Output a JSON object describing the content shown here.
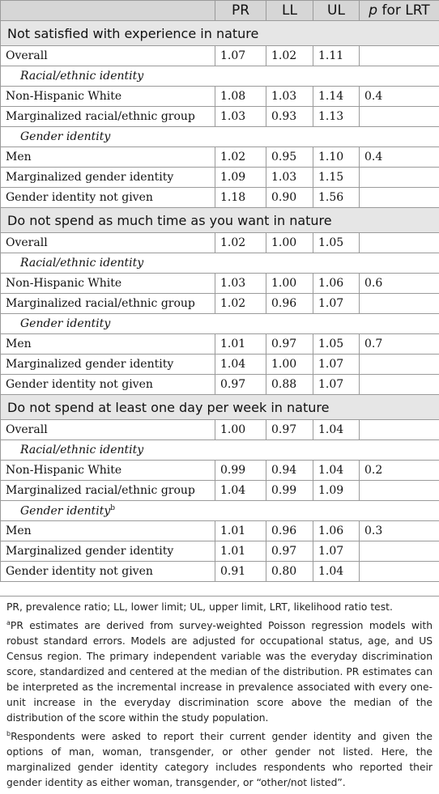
{
  "header": {
    "col_label": "",
    "pr": "PR",
    "ll": "LL",
    "ul": "UL",
    "p": "p",
    "p_suffix": " for LRT"
  },
  "sections": [
    {
      "title": "Not satisfied with experience in nature",
      "overall": {
        "label": "Overall",
        "pr": "1.07",
        "ll": "1.02",
        "ul": "1.11"
      },
      "race_label": "Racial/ethnic identity",
      "race": [
        {
          "label": "Non-Hispanic White",
          "pr": "1.08",
          "ll": "1.03",
          "ul": "1.14",
          "p": "0.4"
        },
        {
          "label": "Marginalized racial/ethnic group",
          "pr": "1.03",
          "ll": "0.93",
          "ul": "1.13",
          "p": ""
        }
      ],
      "gender_label": "Gender identity",
      "gender_sup": "",
      "gender": [
        {
          "label": "Men",
          "pr": "1.02",
          "ll": "0.95",
          "ul": "1.10",
          "p": "0.4"
        },
        {
          "label": "Marginalized gender identity",
          "pr": "1.09",
          "ll": "1.03",
          "ul": "1.15",
          "p": ""
        },
        {
          "label": "Gender identity not given",
          "pr": "1.18",
          "ll": "0.90",
          "ul": "1.56",
          "p": ""
        }
      ]
    },
    {
      "title": "Do not spend as much time as you want in nature",
      "overall": {
        "label": "Overall",
        "pr": "1.02",
        "ll": "1.00",
        "ul": "1.05"
      },
      "race_label": "Racial/ethnic identity",
      "race": [
        {
          "label": "Non-Hispanic White",
          "pr": "1.03",
          "ll": "1.00",
          "ul": "1.06",
          "p": "0.6"
        },
        {
          "label": "Marginalized racial/ethnic group",
          "pr": "1.02",
          "ll": "0.96",
          "ul": "1.07",
          "p": ""
        }
      ],
      "gender_label": "Gender identity",
      "gender_sup": "",
      "gender": [
        {
          "label": "Men",
          "pr": "1.01",
          "ll": "0.97",
          "ul": "1.05",
          "p": "0.7"
        },
        {
          "label": "Marginalized gender identity",
          "pr": "1.04",
          "ll": "1.00",
          "ul": "1.07",
          "p": ""
        },
        {
          "label": "Gender identity not given",
          "pr": "0.97",
          "ll": "0.88",
          "ul": "1.07",
          "p": ""
        }
      ]
    },
    {
      "title": "Do not spend at least one day per week in nature",
      "overall": {
        "label": "Overall",
        "pr": "1.00",
        "ll": "0.97",
        "ul": "1.04"
      },
      "race_label": "Racial/ethnic identity",
      "race": [
        {
          "label": "Non-Hispanic White",
          "pr": "0.99",
          "ll": "0.94",
          "ul": "1.04",
          "p": "0.2"
        },
        {
          "label": "Marginalized racial/ethnic group",
          "pr": "1.04",
          "ll": "0.99",
          "ul": "1.09",
          "p": ""
        }
      ],
      "gender_label": "Gender identity",
      "gender_sup": "b",
      "gender": [
        {
          "label": "Men",
          "pr": "1.01",
          "ll": "0.96",
          "ul": "1.06",
          "p": "0.3"
        },
        {
          "label": "Marginalized gender identity",
          "pr": "1.01",
          "ll": "0.97",
          "ul": "1.07",
          "p": ""
        },
        {
          "label": "Gender identity not given",
          "pr": "0.91",
          "ll": "0.80",
          "ul": "1.04",
          "p": ""
        }
      ]
    }
  ],
  "notes": {
    "abbrev": "PR, prevalence ratio; LL, lower limit; UL, upper limit, LRT, likelihood ratio test.",
    "a_mark": "a",
    "a_text": "PR estimates are derived from survey-weighted Poisson regression models with robust standard errors. Models are adjusted for occupational status, age, and US Census region. The primary independent variable was the everyday discrimination score, standardized and centered at the median of the distribution. PR estimates can be interpreted as the incremental increase in prevalence associated with every one-unit increase in the everyday discrimination score above the median of the distribution of the score within the study population.",
    "b_mark": "b",
    "b_text": "Respondents were asked to report their current gender identity and given the options of man, woman, transgender, or other gender not listed. Here, the marginalized gender identity category includes respondents who reported their gender identity as either woman, transgender, or “other/not listed”."
  }
}
